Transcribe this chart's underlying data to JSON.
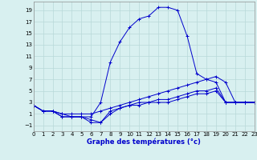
{
  "xlabel": "Graphe des températures (°c)",
  "background_color": "#d8f0f0",
  "grid_color": "#b8d8d8",
  "line_color": "#0000cc",
  "x_ticks": [
    0,
    1,
    2,
    3,
    4,
    5,
    6,
    7,
    8,
    9,
    10,
    11,
    12,
    13,
    14,
    15,
    16,
    17,
    18,
    19,
    20,
    21,
    22,
    23
  ],
  "y_ticks": [
    -1,
    1,
    3,
    5,
    7,
    9,
    11,
    13,
    15,
    17,
    19
  ],
  "ylim": [
    -2.0,
    20.5
  ],
  "xlim": [
    0,
    23
  ],
  "series1_x": [
    0,
    1,
    2,
    3,
    4,
    5,
    6,
    7,
    8,
    9,
    10,
    11,
    12,
    13,
    14,
    15,
    16,
    17,
    18,
    19,
    20,
    21,
    22,
    23
  ],
  "series1_y": [
    2.5,
    1.5,
    1.5,
    0.5,
    0.5,
    0.5,
    0.5,
    3.0,
    10.0,
    13.5,
    16.0,
    17.5,
    18.0,
    19.5,
    19.5,
    19.0,
    14.5,
    8.0,
    7.0,
    6.5,
    3.0,
    3.0,
    3.0,
    3.0
  ],
  "series2_x": [
    0,
    1,
    2,
    3,
    4,
    5,
    6,
    7,
    8,
    9,
    10,
    11,
    12,
    13,
    14,
    15,
    16,
    17,
    18,
    19,
    20,
    21,
    22,
    23
  ],
  "series2_y": [
    2.5,
    1.5,
    1.5,
    1.0,
    1.0,
    1.0,
    1.0,
    1.5,
    2.0,
    2.5,
    3.0,
    3.5,
    4.0,
    4.5,
    5.0,
    5.5,
    6.0,
    6.5,
    7.0,
    7.5,
    6.5,
    3.0,
    3.0,
    3.0
  ],
  "series3_x": [
    0,
    1,
    2,
    3,
    4,
    5,
    6,
    7,
    8,
    9,
    10,
    11,
    12,
    13,
    14,
    15,
    16,
    17,
    18,
    19,
    20,
    21,
    22,
    23
  ],
  "series3_y": [
    2.5,
    1.5,
    1.5,
    0.5,
    0.5,
    0.5,
    0.0,
    -0.5,
    1.0,
    2.0,
    2.5,
    3.0,
    3.0,
    3.5,
    3.5,
    4.0,
    4.5,
    5.0,
    5.0,
    5.5,
    3.0,
    3.0,
    3.0,
    3.0
  ],
  "series4_x": [
    0,
    1,
    2,
    3,
    4,
    5,
    6,
    7,
    8,
    9,
    10,
    11,
    12,
    13,
    14,
    15,
    16,
    17,
    18,
    19,
    20,
    21,
    22,
    23
  ],
  "series4_y": [
    2.5,
    1.5,
    1.5,
    1.0,
    0.5,
    0.5,
    -0.5,
    -0.5,
    1.5,
    2.0,
    2.5,
    2.5,
    3.0,
    3.0,
    3.0,
    3.5,
    4.0,
    4.5,
    4.5,
    5.0,
    3.0,
    3.0,
    3.0,
    3.0
  ]
}
